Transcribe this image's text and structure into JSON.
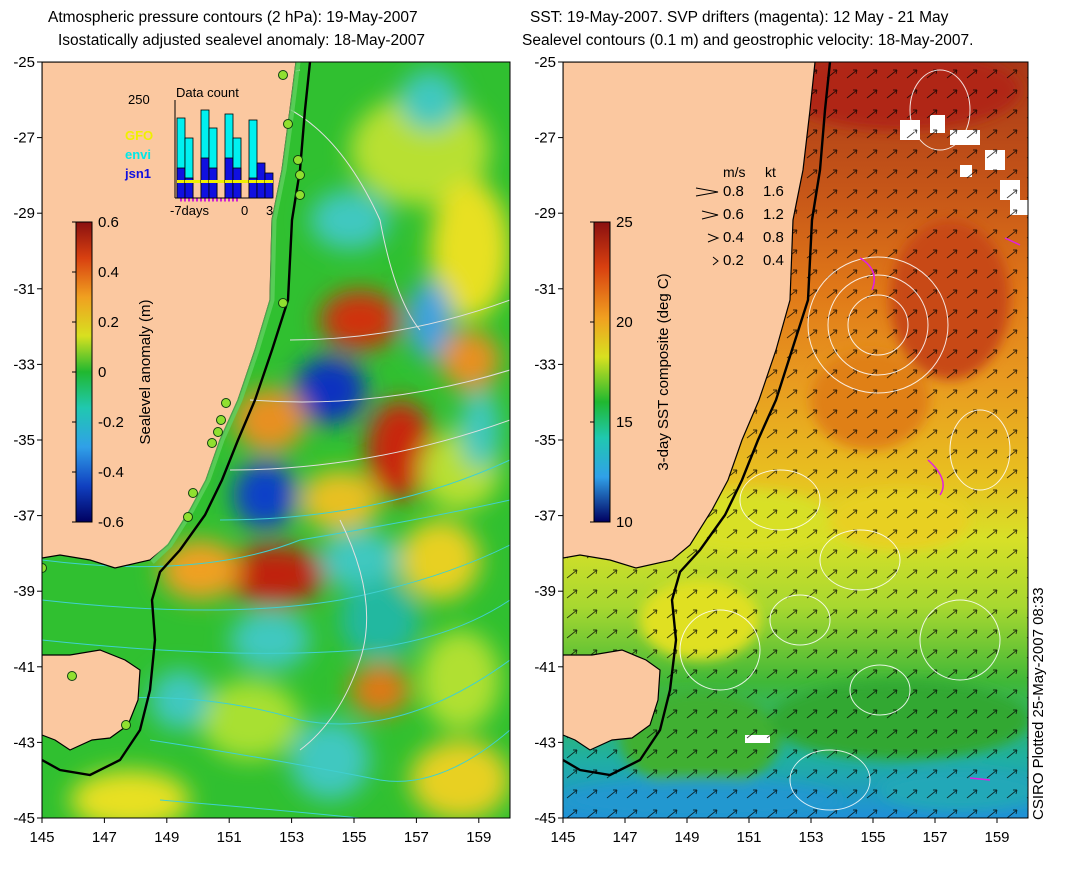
{
  "left_panel": {
    "title_line1": "Atmospheric pressure contours (2 hPa): 19-May-2007",
    "title_line2": "Isostatically adjusted sealevel anomaly: 18-May-2007",
    "x_ticks": [
      "145",
      "147",
      "149",
      "151",
      "153",
      "155",
      "157",
      "159"
    ],
    "y_ticks": [
      "-25",
      "-27",
      "-29",
      "-31",
      "-33",
      "-35",
      "-37",
      "-39",
      "-41",
      "-43",
      "-45"
    ],
    "colorbar": {
      "label": "Sealevel anomaly (m)",
      "ticks": [
        "0.6",
        "0.4",
        "0.2",
        "0",
        "-0.2",
        "-0.4",
        "-0.6"
      ]
    },
    "data_count": {
      "title": "Data count",
      "ymax_label": "250",
      "x_labels": [
        "-7days",
        "0",
        "3"
      ],
      "legend": [
        {
          "name": "GFO",
          "color": "#f0f000"
        },
        {
          "name": "envi",
          "color": "#00e8e8"
        },
        {
          "name": "jsn1",
          "color": "#1010e0"
        }
      ]
    }
  },
  "right_panel": {
    "title_line1": "SST: 19-May-2007. SVP drifters (magenta): 12 May - 21 May",
    "title_line2": "Sealevel contours (0.1 m) and geostrophic velocity: 18-May-2007.",
    "x_ticks": [
      "145",
      "147",
      "149",
      "151",
      "153",
      "155",
      "157",
      "159"
    ],
    "y_ticks": [
      "-25",
      "-27",
      "-29",
      "-31",
      "-33",
      "-35",
      "-37",
      "-39",
      "-41",
      "-43",
      "-45"
    ],
    "colorbar": {
      "label": "3-day SST composite (deg C)",
      "ticks": [
        "25",
        "20",
        "15",
        "10"
      ]
    },
    "velocity_legend": {
      "header_ms": "m/s",
      "header_kt": "kt",
      "rows": [
        {
          "ms": "0.8",
          "kt": "1.6"
        },
        {
          "ms": "0.6",
          "kt": "1.2"
        },
        {
          "ms": "0.4",
          "kt": "0.8"
        },
        {
          "ms": "0.2",
          "kt": "0.4"
        }
      ]
    }
  },
  "credit": "CSIRO Plotted 25-May-2007 08:33"
}
